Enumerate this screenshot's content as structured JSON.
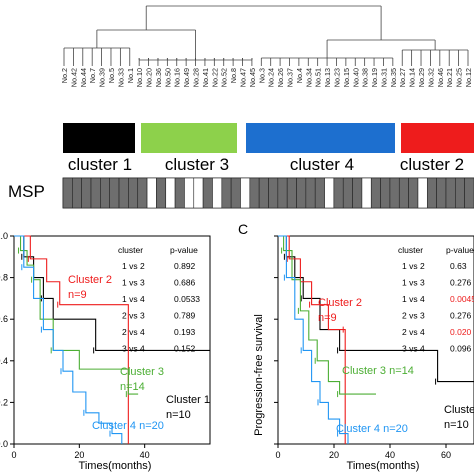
{
  "dendrogram": {
    "labels": [
      "No.2",
      "No.42",
      "No.44",
      "No.7",
      "No.39",
      "No.5",
      "No.33",
      "No.1",
      "No.10",
      "No.20",
      "No.36",
      "No.50",
      "No.16",
      "No.49",
      "No.28",
      "No.41",
      "No.22",
      "No.52",
      "No.8",
      "No.47",
      "No.45",
      "No.3",
      "No.24",
      "No.26",
      "No.37",
      "No.4",
      "No.34",
      "No.51",
      "No.13",
      "No.23",
      "No.15",
      "No.40",
      "No.38",
      "No.19",
      "No.31",
      "No.35",
      "No.27",
      "No.14",
      "No.29",
      "No.32",
      "No.46",
      "No.21",
      "No.25",
      "No.12"
    ]
  },
  "clusters": {
    "labels": [
      "cluster 1",
      "cluster 3",
      "cluster 4",
      "cluster 2"
    ],
    "colors": [
      "#000000",
      "#8dd14b",
      "#1d6fcf",
      "#ee1c1c"
    ]
  },
  "msp": {
    "label": "MSP",
    "pattern": [
      1,
      1,
      1,
      1,
      1,
      1,
      1,
      1,
      1,
      0,
      1,
      0,
      1,
      0,
      0,
      1,
      0,
      1,
      1,
      0,
      1,
      1,
      1,
      1,
      1,
      1,
      1,
      1,
      0,
      1,
      1,
      1,
      0,
      1,
      1,
      1,
      1,
      1,
      0,
      1,
      1,
      1,
      1,
      1
    ]
  },
  "panels": {
    "panel_c_letter": "C",
    "xlabel": "Times(months)",
    "left_ylabel": "",
    "right_ylabel": "Progression-free survival"
  },
  "chart_data": [
    {
      "type": "line",
      "title": "",
      "xlabel": "Times(months)",
      "ylabel": "",
      "xlim": [
        0,
        60
      ],
      "ylim": [
        0,
        1.0
      ],
      "xticks": [
        0,
        20,
        40
      ],
      "yticks": [
        "0.0",
        "0.2",
        "0.4",
        "0.6",
        "0.8",
        "1.0"
      ],
      "series": [
        {
          "name": "Cluster 1",
          "label_extra": "n=10",
          "color": "#000000",
          "x": [
            0,
            3,
            6,
            9,
            12,
            25,
            35,
            60
          ],
          "y": [
            1.0,
            0.9,
            0.8,
            0.7,
            0.6,
            0.45,
            0.45,
            0.45
          ]
        },
        {
          "name": "Cluster 2",
          "label_extra": "n=9",
          "color": "#ee1c1c",
          "x": [
            0,
            5,
            10,
            14,
            35,
            35
          ],
          "y": [
            1.0,
            0.89,
            0.78,
            0.67,
            0.67,
            0.0
          ]
        },
        {
          "name": "Cluster 3",
          "label_extra": "n=14",
          "color": "#4cae34",
          "x": [
            0,
            2,
            4,
            6,
            8,
            12,
            20,
            35,
            38
          ],
          "y": [
            1.0,
            0.93,
            0.86,
            0.79,
            0.6,
            0.45,
            0.36,
            0.24,
            0.24
          ]
        },
        {
          "name": "Cluster 4",
          "label_extra": "n=20",
          "color": "#2196f3",
          "x": [
            0,
            3,
            6,
            9,
            12,
            15,
            18,
            22,
            26,
            30,
            33
          ],
          "y": [
            1.0,
            0.85,
            0.7,
            0.55,
            0.45,
            0.35,
            0.25,
            0.15,
            0.1,
            0.05,
            0.0
          ]
        }
      ],
      "stats_table": {
        "headers": [
          "cluster",
          "p-value"
        ],
        "rows": [
          [
            "1  vs 2",
            "0.892"
          ],
          [
            "1  vs 3",
            "0.686"
          ],
          [
            "1  vs 4",
            "0.0533"
          ],
          [
            "2  vs 3",
            "0.789"
          ],
          [
            "2  vs 4",
            "0.193"
          ],
          [
            "3  vs 4",
            "0.152"
          ]
        ]
      }
    },
    {
      "type": "line",
      "title": "",
      "xlabel": "Times(months)",
      "ylabel": "Progression-free survival",
      "xlim": [
        0,
        70
      ],
      "ylim": [
        0,
        1.0
      ],
      "xticks": [
        0,
        20,
        40,
        60
      ],
      "yticks": [
        "0.0",
        "0.2",
        "0.4",
        "0.6",
        "0.8",
        "1.0"
      ],
      "series": [
        {
          "name": "Cluster 1",
          "label_extra": "n=10",
          "color": "#000000",
          "x": [
            0,
            3,
            6,
            9,
            15,
            22,
            33,
            57,
            70
          ],
          "y": [
            1.0,
            0.9,
            0.8,
            0.7,
            0.55,
            0.45,
            0.45,
            0.3,
            0.3
          ]
        },
        {
          "name": "Cluster 2",
          "label_extra": "n=9",
          "color": "#ee1c1c",
          "x": [
            0,
            4,
            8,
            12,
            18,
            24,
            24
          ],
          "y": [
            1.0,
            0.89,
            0.78,
            0.67,
            0.55,
            0.55,
            0.0
          ]
        },
        {
          "name": "Cluster 3",
          "label_extra": "n=14",
          "color": "#4cae34",
          "x": [
            0,
            2,
            5,
            8,
            11,
            14,
            18,
            22,
            35
          ],
          "y": [
            1.0,
            0.93,
            0.79,
            0.64,
            0.5,
            0.4,
            0.3,
            0.24,
            0.24
          ]
        },
        {
          "name": "Cluster 4",
          "label_extra": "n=20",
          "color": "#2196f3",
          "x": [
            0,
            3,
            6,
            9,
            12,
            15,
            18,
            22,
            25
          ],
          "y": [
            1.0,
            0.8,
            0.6,
            0.45,
            0.3,
            0.2,
            0.12,
            0.05,
            0.0
          ]
        }
      ],
      "stats_table": {
        "headers": [
          "cluster",
          "p-value"
        ],
        "rows": [
          [
            "1  vs 2",
            "0.63"
          ],
          [
            "1  vs 3",
            "0.276"
          ],
          [
            "1  vs 4",
            "0.0045"
          ],
          [
            "2  vs 3",
            "0.276"
          ],
          [
            "2  vs 4",
            "0.020"
          ],
          [
            "3  vs 4",
            "0.096"
          ]
        ],
        "red_rows": [
          2,
          4
        ]
      }
    }
  ]
}
